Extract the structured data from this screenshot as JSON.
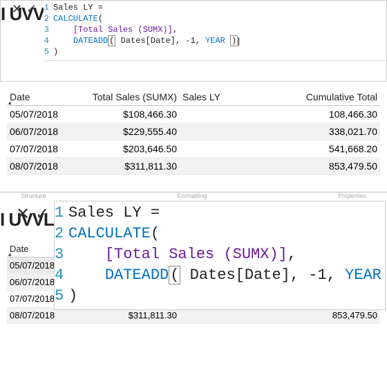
{
  "formula": {
    "measure_name": "Sales LY",
    "lines": [
      {
        "n": 1,
        "tokens": [
          {
            "t": "Sales LY ",
            "c": "plain"
          },
          {
            "t": "=",
            "c": "plain"
          }
        ]
      },
      {
        "n": 2,
        "tokens": [
          {
            "t": "CALCULATE",
            "c": "fn"
          },
          {
            "t": "(",
            "c": "paren"
          }
        ]
      },
      {
        "n": 3,
        "tokens": [
          {
            "t": "    ",
            "c": "plain"
          },
          {
            "t": "[Total Sales (SUMX)]",
            "c": "col"
          },
          {
            "t": ",",
            "c": "plain"
          }
        ]
      },
      {
        "n": 4,
        "tokens": [
          {
            "t": "    ",
            "c": "plain"
          },
          {
            "t": "DATEADD",
            "c": "fn"
          },
          {
            "t": "(",
            "c": "box"
          },
          {
            "t": " Dates[Date], -1, ",
            "c": "plain"
          },
          {
            "t": "YEAR",
            "c": "kw"
          },
          {
            "t": " ",
            "c": "plain"
          },
          {
            "t": ")",
            "c": "box"
          },
          {
            "t": "",
            "c": "cursor"
          }
        ]
      },
      {
        "n": 5,
        "tokens": [
          {
            "t": ")",
            "c": "paren"
          }
        ]
      }
    ]
  },
  "behind_text_top": "I UVVL",
  "behind_text_bottom": "I UVVL",
  "columns": {
    "date": "Date",
    "total_sales": "Total Sales (SUMX)",
    "sales_ly": "Sales LY",
    "cumulative": "Cumulative Total"
  },
  "rows": [
    {
      "date": "05/07/2018",
      "total_sales": "$108,466.30",
      "sales_ly": "",
      "cumulative": "108,466.30"
    },
    {
      "date": "06/07/2018",
      "total_sales": "$229,555.40",
      "sales_ly": "",
      "cumulative": "338,021.70"
    },
    {
      "date": "07/07/2018",
      "total_sales": "$203,646.50",
      "sales_ly": "",
      "cumulative": "541,668.20"
    },
    {
      "date": "08/07/2018",
      "total_sales": "$311,811.30",
      "sales_ly": "",
      "cumulative": "853,479.50"
    }
  ],
  "ribbon_ghost": [
    "Structure",
    "Formatting",
    "Properties"
  ],
  "icons": {
    "cancel": "✕",
    "commit": "✓"
  },
  "colors": {
    "keyword": "#0070c0",
    "function": "#0070c0",
    "column_ref": "#6a1b9a",
    "gutter": "#1e90c0",
    "row_alt": "#f1f1f1",
    "header_underline": "#c8c8c8",
    "first_row_topline": "#9bbfd8"
  }
}
